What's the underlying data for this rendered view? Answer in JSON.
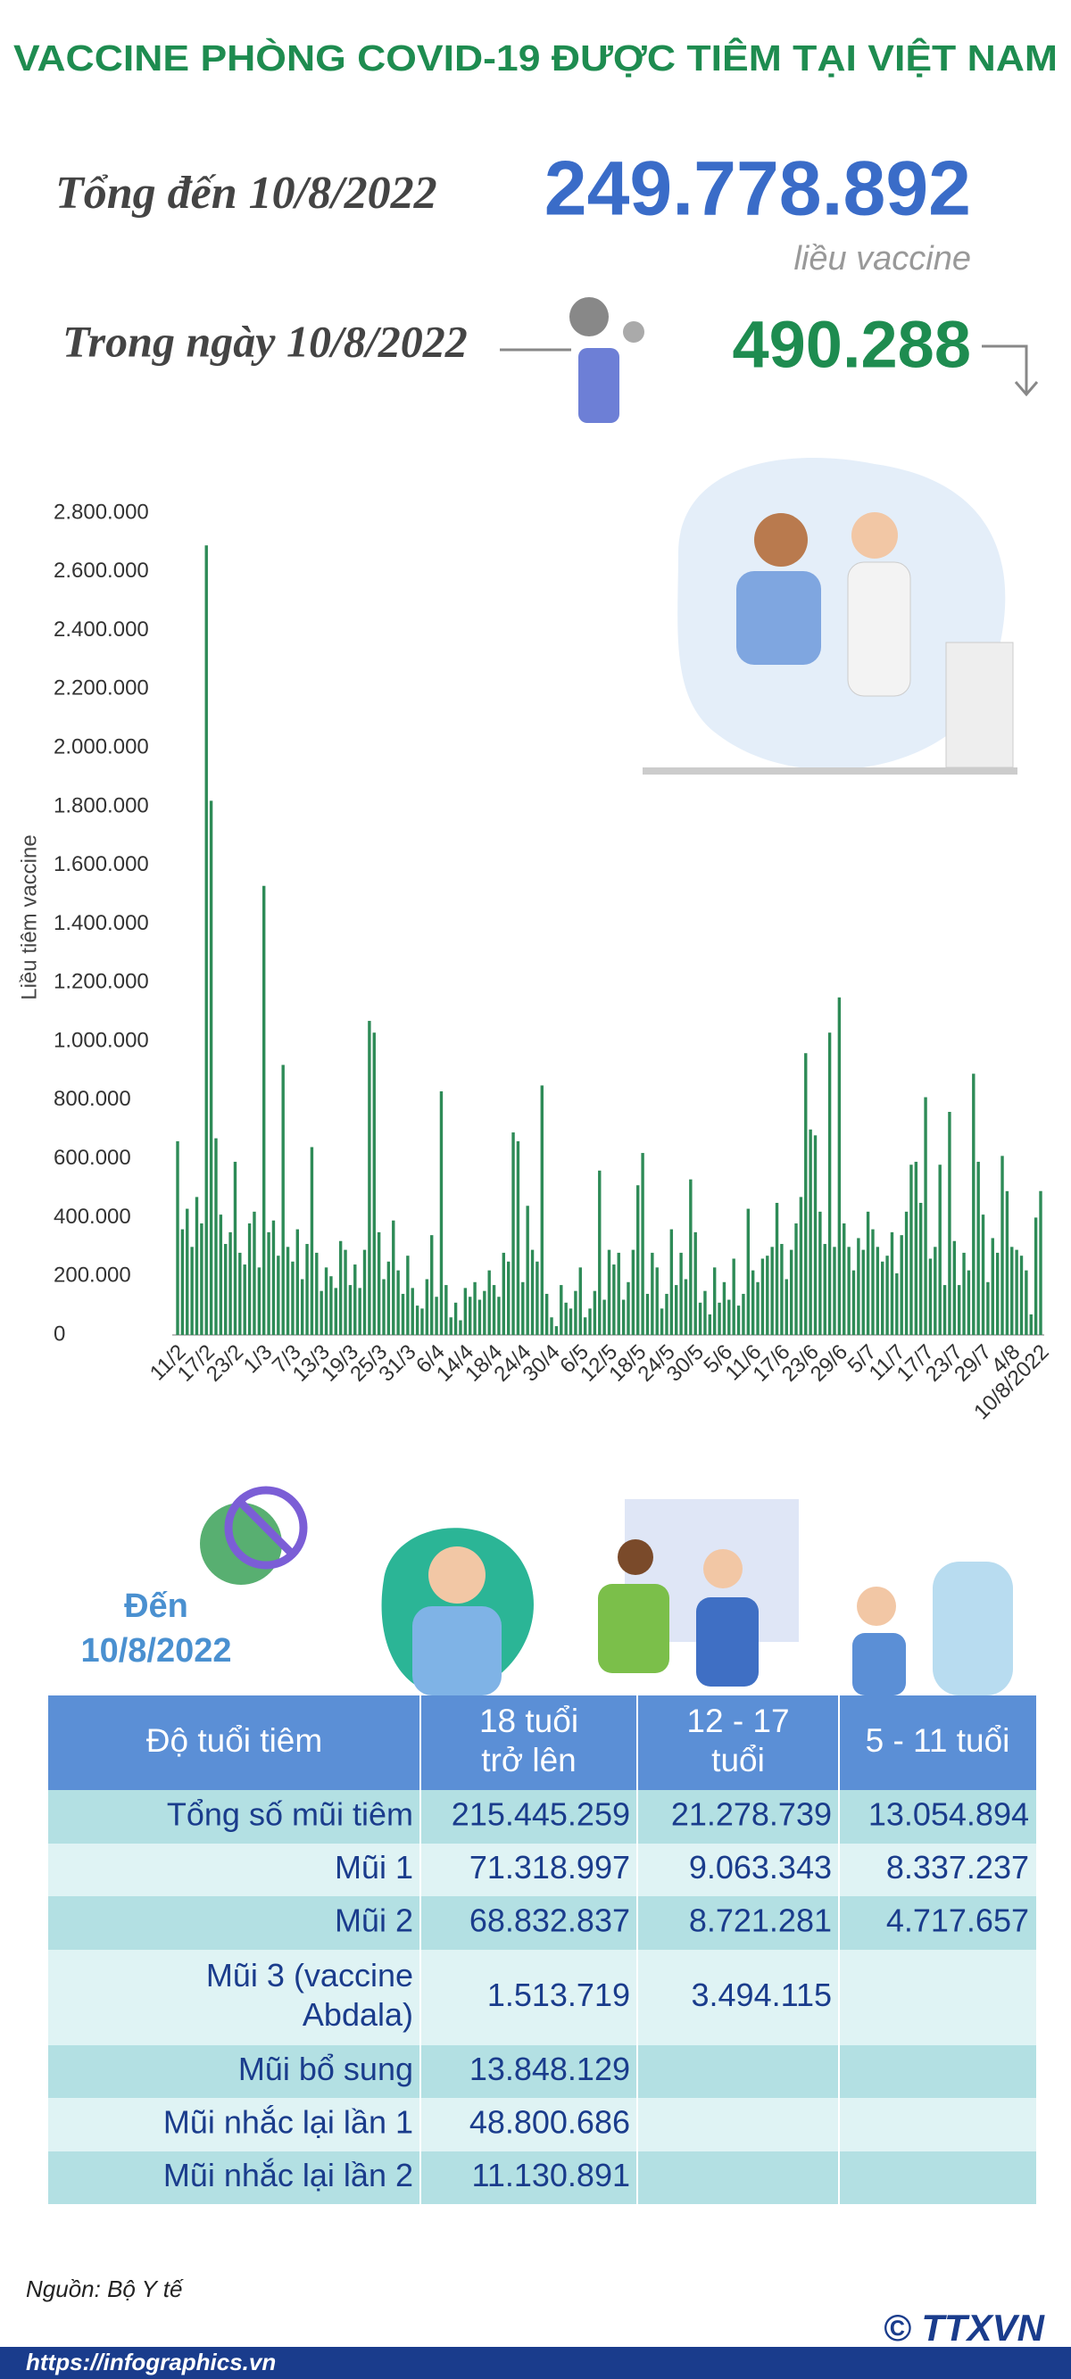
{
  "header": {
    "title": "VACCINE PHÒNG COVID-19 ĐƯỢC TIÊM TẠI VIỆT NAM",
    "total_label": "Tổng đến 10/8/2022",
    "total_value": "249.778.892",
    "total_unit": "liều vaccine",
    "day_label": "Trong ngày 10/8/2022",
    "day_value": "490.288"
  },
  "chart_data": {
    "type": "bar",
    "ylabel": "Liều tiêm vaccine",
    "color": "#2e8b57",
    "grid": false,
    "categories": [
      "11/2",
      null,
      null,
      null,
      null,
      null,
      "17/2",
      null,
      null,
      null,
      null,
      null,
      "23/2",
      null,
      null,
      null,
      null,
      null,
      "1/3",
      null,
      null,
      null,
      null,
      null,
      "7/3",
      null,
      null,
      null,
      null,
      null,
      "13/3",
      null,
      null,
      null,
      null,
      null,
      "19/3",
      null,
      null,
      null,
      null,
      null,
      "25/3",
      null,
      null,
      null,
      null,
      null,
      "31/3",
      null,
      null,
      null,
      null,
      null,
      "6/4",
      null,
      null,
      null,
      null,
      null,
      "14/4",
      null,
      null,
      null,
      null,
      null,
      "18/4",
      null,
      null,
      null,
      null,
      null,
      "24/4",
      null,
      null,
      null,
      null,
      null,
      "30/4",
      null,
      null,
      null,
      null,
      null,
      "6/5",
      null,
      null,
      null,
      null,
      null,
      "12/5",
      null,
      null,
      null,
      null,
      null,
      "18/5",
      null,
      null,
      null,
      null,
      null,
      "24/5",
      null,
      null,
      null,
      null,
      null,
      "30/5",
      null,
      null,
      null,
      null,
      null,
      "5/6",
      null,
      null,
      null,
      null,
      null,
      "11/6",
      null,
      null,
      null,
      null,
      null,
      "17/6",
      null,
      null,
      null,
      null,
      null,
      "23/6",
      null,
      null,
      null,
      null,
      null,
      "29/6",
      null,
      null,
      null,
      null,
      null,
      "5/7",
      null,
      null,
      null,
      null,
      null,
      "11/7",
      null,
      null,
      null,
      null,
      null,
      "17/7",
      null,
      null,
      null,
      null,
      null,
      "23/7",
      null,
      null,
      null,
      null,
      null,
      "29/7",
      null,
      null,
      null,
      null,
      null,
      "4/8",
      null,
      null,
      null,
      null,
      null,
      "10/8/2022"
    ],
    "values": [
      660000,
      360000,
      430000,
      300000,
      470000,
      380000,
      2690000,
      1820000,
      670000,
      410000,
      310000,
      350000,
      590000,
      280000,
      240000,
      380000,
      420000,
      230000,
      1530000,
      350000,
      390000,
      270000,
      920000,
      300000,
      250000,
      360000,
      190000,
      310000,
      640000,
      280000,
      150000,
      230000,
      200000,
      160000,
      320000,
      290000,
      170000,
      240000,
      160000,
      290000,
      1070000,
      1030000,
      350000,
      190000,
      250000,
      390000,
      220000,
      140000,
      270000,
      160000,
      100000,
      90000,
      190000,
      340000,
      130000,
      830000,
      170000,
      60000,
      110000,
      50000,
      160000,
      130000,
      180000,
      120000,
      150000,
      220000,
      170000,
      130000,
      280000,
      250000,
      690000,
      660000,
      180000,
      440000,
      290000,
      250000,
      850000,
      140000,
      60000,
      30000,
      170000,
      110000,
      90000,
      150000,
      230000,
      60000,
      90000,
      150000,
      560000,
      120000,
      290000,
      240000,
      280000,
      120000,
      180000,
      290000,
      510000,
      620000,
      140000,
      280000,
      230000,
      90000,
      140000,
      360000,
      170000,
      280000,
      190000,
      530000,
      350000,
      110000,
      150000,
      70000,
      230000,
      110000,
      180000,
      120000,
      260000,
      100000,
      140000,
      430000,
      220000,
      180000,
      260000,
      270000,
      300000,
      450000,
      310000,
      190000,
      290000,
      380000,
      470000,
      960000,
      700000,
      680000,
      420000,
      310000,
      1030000,
      300000,
      1150000,
      380000,
      300000,
      220000,
      330000,
      290000,
      420000,
      360000,
      300000,
      250000,
      270000,
      350000,
      210000,
      340000,
      420000,
      580000,
      590000,
      450000,
      810000,
      260000,
      300000,
      580000,
      170000,
      760000,
      320000,
      170000,
      280000,
      220000,
      890000,
      590000,
      410000,
      180000,
      330000,
      280000,
      610000,
      490000,
      300000,
      290000,
      270000,
      220000,
      70000,
      400000,
      490288
    ],
    "ylim": [
      0,
      2800000
    ],
    "yticks": [
      0,
      {
        "value": 200000,
        "label": "200.000"
      },
      {
        "value": 400000,
        "label": "400.000"
      },
      {
        "value": 600000,
        "label": "600.000"
      },
      {
        "value": 800000,
        "label": "800.000"
      },
      {
        "value": 1000000,
        "label": "1.000.000"
      },
      {
        "value": 1200000,
        "label": "1.200.000"
      },
      {
        "value": 1400000,
        "label": "1.400.000"
      },
      {
        "value": 1600000,
        "label": "1.600.000"
      },
      {
        "value": 1800000,
        "label": "1.800.000"
      },
      {
        "value": 2000000,
        "label": "2.000.000"
      },
      {
        "value": 2200000,
        "label": "2.200.000"
      },
      {
        "value": 2400000,
        "label": "2.400.000"
      },
      {
        "value": 2600000,
        "label": "2.600.000"
      },
      {
        "value": 2800000,
        "label": "2.800.000"
      }
    ]
  },
  "table": {
    "as_of": [
      "Đến",
      "10/8/2022"
    ],
    "header": [
      [
        "Độ tuổi tiêm"
      ],
      [
        "18 tuổi",
        "trở lên"
      ],
      [
        "12 - 17",
        "tuổi"
      ],
      [
        "5 - 11 tuổi"
      ]
    ],
    "rows": [
      [
        [
          "Tổng số mũi tiêm"
        ],
        "215.445.259",
        "21.278.739",
        "13.054.894"
      ],
      [
        [
          "Mũi 1"
        ],
        "71.318.997",
        "9.063.343",
        "8.337.237"
      ],
      [
        [
          "Mũi 2"
        ],
        "68.832.837",
        "8.721.281",
        "4.717.657"
      ],
      [
        [
          "Mũi 3 (vaccine",
          "Abdala)"
        ],
        "1.513.719",
        "3.494.115",
        null
      ],
      [
        [
          "Mũi bổ sung"
        ],
        "13.848.129",
        null,
        null
      ],
      [
        [
          "Mũi nhắc lại lần 1"
        ],
        "48.800.686",
        null,
        null
      ],
      [
        [
          "Mũi nhắc lại lần 2"
        ],
        "11.130.891",
        null,
        null
      ]
    ]
  },
  "source": "Nguồn: Bộ Y tế",
  "url": "https://infographics.vn",
  "logo": "© TTXVN"
}
